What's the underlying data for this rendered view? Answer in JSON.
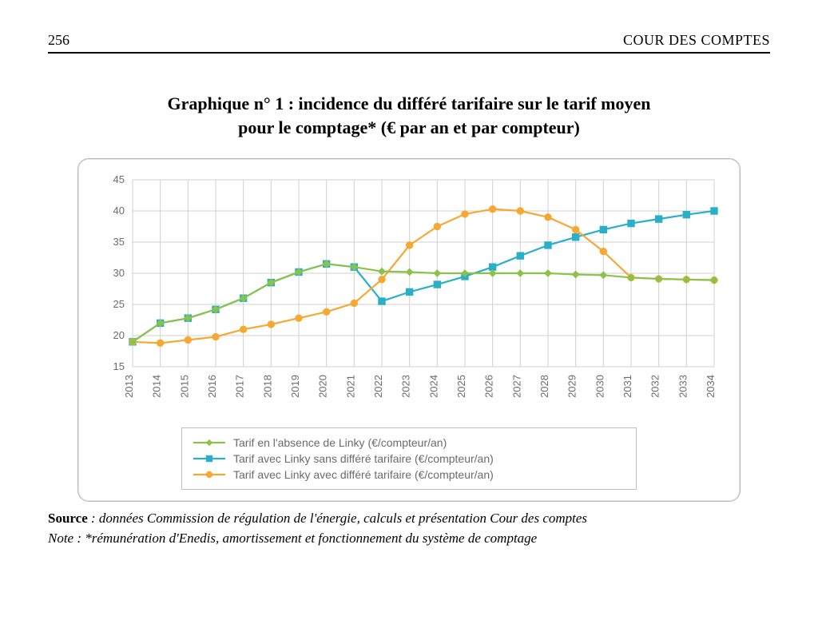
{
  "header": {
    "page_number": "256",
    "institution": "COUR DES COMPTES"
  },
  "chart": {
    "title_line1": "Graphique n° 1 : incidence du différé tarifaire sur le tarif moyen",
    "title_line2": "pour le comptage* (€ par an et par compteur)",
    "type": "line",
    "x_categories": [
      "2013",
      "2014",
      "2015",
      "2016",
      "2017",
      "2018",
      "2019",
      "2020",
      "2021",
      "2022",
      "2023",
      "2024",
      "2025",
      "2026",
      "2027",
      "2028",
      "2029",
      "2030",
      "2031",
      "2032",
      "2033",
      "2034"
    ],
    "ylim": [
      15,
      45
    ],
    "ytick_step": 5,
    "y_ticks": [
      15,
      20,
      25,
      30,
      35,
      40,
      45
    ],
    "grid_color": "#d0d0d0",
    "axis_text_color": "#6b6b6b",
    "axis_font_size": 13,
    "x_label_rotation": -90,
    "line_width": 2.2,
    "marker_size": 4.2,
    "background_color": "#ffffff",
    "frame_border_color": "#b8b8b8",
    "series": [
      {
        "key": "sans_linky",
        "label": "Tarif en l'absence de Linky (€/compteur/an)",
        "color": "#8bc34a",
        "marker": "diamond",
        "values": [
          19.0,
          22.0,
          22.8,
          24.2,
          26.0,
          28.5,
          30.2,
          31.5,
          31.0,
          30.3,
          30.2,
          30.0,
          30.0,
          30.0,
          30.0,
          30.0,
          29.8,
          29.7,
          29.3,
          29.1,
          29.0,
          28.9
        ]
      },
      {
        "key": "linky_sans_differe",
        "label": "Tarif avec Linky sans différé tarifaire (€/compteur/an)",
        "color": "#29b0c8",
        "marker": "square",
        "values": [
          19.0,
          22.0,
          22.8,
          24.2,
          26.0,
          28.5,
          30.2,
          31.5,
          31.0,
          25.5,
          27.0,
          28.2,
          29.5,
          31.0,
          32.8,
          34.5,
          35.8,
          37.0,
          38.0,
          38.7,
          39.4,
          40.0
        ]
      },
      {
        "key": "linky_avec_differe",
        "label": "Tarif avec Linky avec différé tarifaire (€/compteur/an)",
        "color": "#f5a932",
        "marker": "circle",
        "values": [
          19.0,
          18.8,
          19.3,
          19.8,
          21.0,
          21.8,
          22.8,
          23.8,
          25.2,
          29.0,
          34.5,
          37.5,
          39.5,
          40.3,
          40.0,
          39.0,
          37.0,
          33.5,
          29.3,
          29.1,
          29.0,
          28.9
        ]
      }
    ],
    "legend": {
      "border_color": "#bfbfbf",
      "text_color": "#6b6b6b",
      "font_size": 14
    }
  },
  "footnotes": {
    "source_label": "Source",
    "source_text": " : données Commission de régulation de l'énergie, calculs et présentation Cour des comptes",
    "note_label": "Note",
    "note_text": " : *rémunération d'Enedis, amortissement et fonctionnement du système de comptage"
  }
}
